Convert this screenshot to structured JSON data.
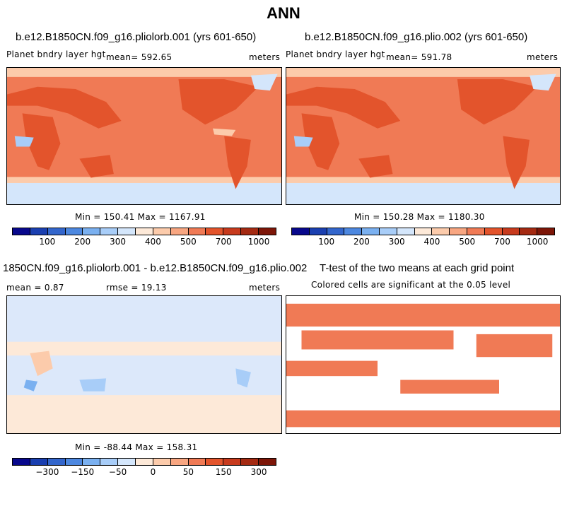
{
  "title": "ANN",
  "panels": [
    {
      "id": "p1",
      "title": "b.e12.B1850CN.f09_g16.pliolorb.001 (yrs 601-650)",
      "left_label": "Planet bndry layer hgt",
      "center_label": "mean= 592.65",
      "right_label": "meters",
      "minmax": "Min = 150.41 Max = 1167.91"
    },
    {
      "id": "p2",
      "title": "b.e12.B1850CN.f09_g16.plio.002 (yrs 601-650)",
      "left_label": "Planet bndry layer hgt",
      "center_label": "mean= 591.78",
      "right_label": "meters",
      "minmax": "Min = 150.28 Max = 1180.30"
    },
    {
      "id": "p3",
      "title": "1850CN.f09_g16.pliolorb.001 - b.e12.B1850CN.f09_g16.plio.002",
      "left_label": "mean =   0.87",
      "center_label": "rmse =  19.13",
      "right_label": "meters",
      "minmax": "Min = -88.44 Max = 158.31"
    },
    {
      "id": "p4",
      "title": "T-test of the two means at each grid point",
      "subtitle": "Colored cells are significant at the 0.05 level"
    }
  ],
  "colorbars": {
    "abs": {
      "colors": [
        "#08088c",
        "#1a3fb0",
        "#3366cc",
        "#4d88e0",
        "#7ab0f0",
        "#a8cdf8",
        "#d4e6fb",
        "#fde9d8",
        "#fccbab",
        "#f8a681",
        "#f07a55",
        "#e3542c",
        "#c73a1d",
        "#a42a12",
        "#7d1608"
      ],
      "ticks": [
        "100",
        "200",
        "300",
        "400",
        "500",
        "700",
        "1000"
      ]
    },
    "diff": {
      "colors": [
        "#08088c",
        "#1a3fb0",
        "#3366cc",
        "#4d88e0",
        "#7ab0f0",
        "#a8cdf8",
        "#d4e6fb",
        "#fde9d8",
        "#fccbab",
        "#f8a681",
        "#f07a55",
        "#e3542c",
        "#c73a1d",
        "#a42a12",
        "#7d1608"
      ],
      "ticks": [
        "−300",
        "−150",
        "−50",
        "0",
        "50",
        "150",
        "300"
      ]
    }
  },
  "colors": {
    "ocean_abs": "#f07a55",
    "land_abs": "#e3542c",
    "ice": "#d4e6fb",
    "diff_neutral": "#dce8fa",
    "diff_pos": "#fde9d8",
    "ttest_sig": "#f07a55"
  }
}
